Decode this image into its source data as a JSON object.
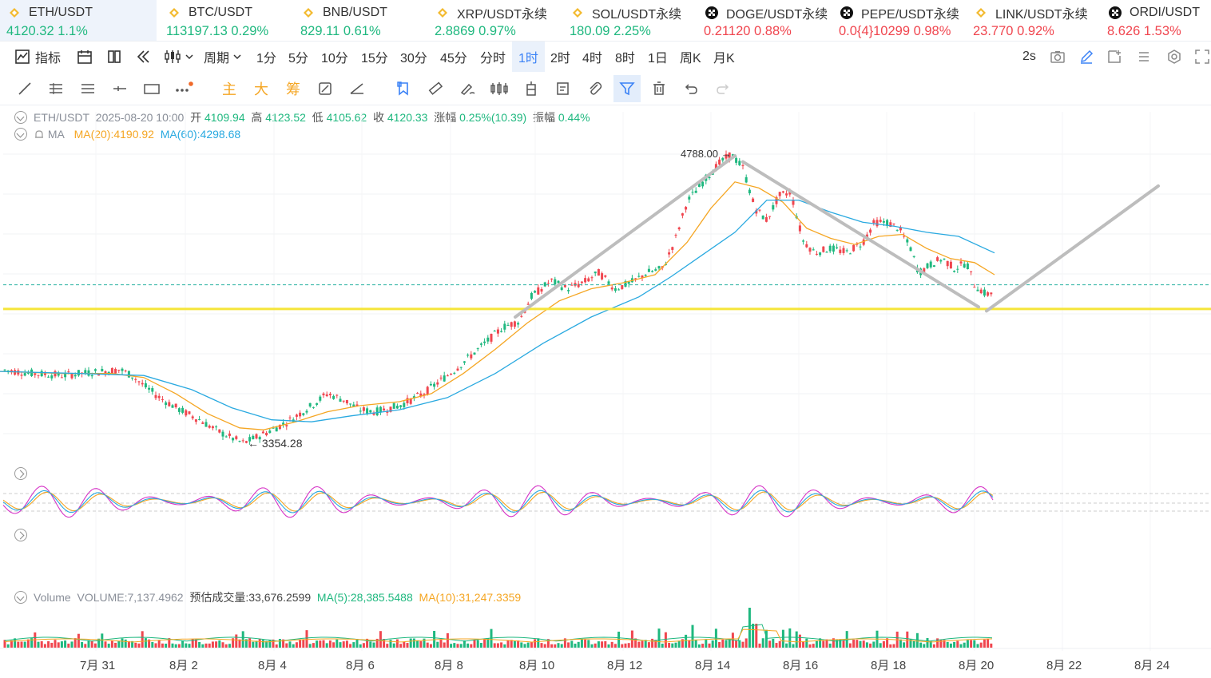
{
  "tickers": [
    {
      "symbol": "ETH/USDT",
      "price": "4120.32",
      "change": "1.1%",
      "dir": "up",
      "icon": "bnb-diamond-icon",
      "active": true
    },
    {
      "symbol": "BTC/USDT",
      "price": "113197.13",
      "change": "0.29%",
      "dir": "up",
      "icon": "bnb-diamond-icon"
    },
    {
      "symbol": "BNB/USDT",
      "price": "829.11",
      "change": "0.61%",
      "dir": "up",
      "icon": "bnb-diamond-icon"
    },
    {
      "symbol": "XRP/USDT永续",
      "price": "2.8869",
      "change": "0.97%",
      "dir": "up",
      "icon": "bnb-diamond-icon"
    },
    {
      "symbol": "SOL/USDT永续",
      "price": "180.09",
      "change": "2.25%",
      "dir": "up",
      "icon": "bnb-diamond-icon"
    },
    {
      "symbol": "DOGE/USDT永续",
      "price": "0.21120",
      "change": "0.88%",
      "dir": "down",
      "icon": "okx-cross-icon"
    },
    {
      "symbol": "PEPE/USDT永续",
      "price": "0.0{4}10299",
      "change": "0.98%",
      "dir": "down",
      "icon": "okx-cross-icon"
    },
    {
      "symbol": "LINK/USDT永续",
      "price": "23.770",
      "change": "0.92%",
      "dir": "down",
      "icon": "bnb-diamond-icon"
    },
    {
      "symbol": "ORDI/USDT",
      "price": "8.626",
      "change": "1.53%",
      "dir": "down",
      "icon": "okx-cross-icon"
    }
  ],
  "toolbar": {
    "indicators": "指标",
    "period": "周期",
    "intervals": [
      "1分",
      "5分",
      "10分",
      "15分",
      "30分",
      "45分",
      "分时",
      "1时",
      "2时",
      "4时",
      "8时",
      "1日",
      "周K",
      "月K"
    ],
    "selected_interval": "1时",
    "refresh": "2s"
  },
  "drawing_tools": {
    "labels": [
      "主",
      "大",
      "筹"
    ]
  },
  "legend": {
    "symbol": "ETH/USDT",
    "datetime": "2025-08-20 10:00",
    "open_label": "开",
    "open": "4109.94",
    "high_label": "高",
    "high": "4123.52",
    "low_label": "低",
    "low": "4105.62",
    "close_label": "收",
    "close": "4120.33",
    "change_label": "涨幅",
    "change": "0.25%(10.39)",
    "amp_label": "振幅",
    "amp": "0.44%",
    "ma_title": "MA",
    "ma20": "MA(20):4190.92",
    "ma60": "MA(60):4298.68",
    "ma20_color": "#f5a623",
    "ma60_color": "#29a9e0"
  },
  "volume_legend": {
    "title": "Volume",
    "volume": "VOLUME:7,137.4962",
    "est": "预估成交量:33,676.2599",
    "ma5": "MA(5):28,385.5488",
    "ma10": "MA(10):31,247.3359"
  },
  "chart_data": {
    "type": "candlestick",
    "interval": "1h",
    "x_axis_labels": [
      "7月 31",
      "8月 2",
      "8月 4",
      "8月 6",
      "8月 8",
      "8月 10",
      "8月 12",
      "8月 14",
      "8月 16",
      "8月 18",
      "8月 20",
      "8月 22",
      "8月 24"
    ],
    "y_range": [
      3250,
      4850
    ],
    "max_marker": "4788.00",
    "min_marker": "3354.28",
    "price_path": [
      [
        0,
        3720
      ],
      [
        40,
        3700
      ],
      [
        80,
        3690
      ],
      [
        100,
        3700
      ],
      [
        130,
        3710
      ],
      [
        150,
        3720
      ],
      [
        165,
        3690
      ],
      [
        180,
        3640
      ],
      [
        200,
        3580
      ],
      [
        225,
        3520
      ],
      [
        250,
        3470
      ],
      [
        270,
        3420
      ],
      [
        290,
        3380
      ],
      [
        305,
        3354
      ],
      [
        330,
        3400
      ],
      [
        360,
        3460
      ],
      [
        390,
        3540
      ],
      [
        410,
        3600
      ],
      [
        430,
        3570
      ],
      [
        450,
        3520
      ],
      [
        470,
        3510
      ],
      [
        500,
        3540
      ],
      [
        530,
        3600
      ],
      [
        550,
        3660
      ],
      [
        570,
        3720
      ],
      [
        590,
        3790
      ],
      [
        610,
        3860
      ],
      [
        630,
        3930
      ],
      [
        650,
        3960
      ],
      [
        665,
        4080
      ],
      [
        690,
        4160
      ],
      [
        710,
        4120
      ],
      [
        730,
        4150
      ],
      [
        750,
        4200
      ],
      [
        770,
        4120
      ],
      [
        790,
        4150
      ],
      [
        810,
        4200
      ],
      [
        830,
        4220
      ],
      [
        845,
        4360
      ],
      [
        860,
        4550
      ],
      [
        880,
        4650
      ],
      [
        900,
        4740
      ],
      [
        915,
        4788
      ],
      [
        930,
        4720
      ],
      [
        945,
        4520
      ],
      [
        960,
        4460
      ],
      [
        975,
        4580
      ],
      [
        990,
        4600
      ],
      [
        1005,
        4360
      ],
      [
        1020,
        4300
      ],
      [
        1040,
        4320
      ],
      [
        1060,
        4300
      ],
      [
        1080,
        4350
      ],
      [
        1095,
        4450
      ],
      [
        1110,
        4450
      ],
      [
        1125,
        4420
      ],
      [
        1140,
        4320
      ],
      [
        1150,
        4200
      ],
      [
        1165,
        4240
      ],
      [
        1180,
        4270
      ],
      [
        1195,
        4220
      ],
      [
        1210,
        4250
      ],
      [
        1220,
        4140
      ],
      [
        1235,
        4090
      ],
      [
        1245,
        4110
      ]
    ],
    "ma20_path": [
      [
        0,
        3710
      ],
      [
        80,
        3700
      ],
      [
        140,
        3700
      ],
      [
        180,
        3680
      ],
      [
        220,
        3600
      ],
      [
        260,
        3500
      ],
      [
        300,
        3430
      ],
      [
        330,
        3420
      ],
      [
        370,
        3460
      ],
      [
        410,
        3510
      ],
      [
        450,
        3540
      ],
      [
        500,
        3560
      ],
      [
        540,
        3600
      ],
      [
        580,
        3700
      ],
      [
        620,
        3820
      ],
      [
        660,
        3950
      ],
      [
        700,
        4060
      ],
      [
        740,
        4120
      ],
      [
        780,
        4150
      ],
      [
        820,
        4190
      ],
      [
        860,
        4350
      ],
      [
        890,
        4520
      ],
      [
        920,
        4650
      ],
      [
        950,
        4620
      ],
      [
        980,
        4550
      ],
      [
        1010,
        4420
      ],
      [
        1040,
        4370
      ],
      [
        1070,
        4340
      ],
      [
        1100,
        4380
      ],
      [
        1130,
        4390
      ],
      [
        1160,
        4320
      ],
      [
        1190,
        4270
      ],
      [
        1220,
        4250
      ],
      [
        1245,
        4190
      ]
    ],
    "ma60_path": [
      [
        0,
        3710
      ],
      [
        100,
        3700
      ],
      [
        180,
        3690
      ],
      [
        240,
        3620
      ],
      [
        290,
        3530
      ],
      [
        340,
        3470
      ],
      [
        390,
        3460
      ],
      [
        440,
        3490
      ],
      [
        500,
        3520
      ],
      [
        560,
        3580
      ],
      [
        620,
        3700
      ],
      [
        680,
        3850
      ],
      [
        740,
        3980
      ],
      [
        800,
        4080
      ],
      [
        840,
        4180
      ],
      [
        880,
        4290
      ],
      [
        920,
        4400
      ],
      [
        960,
        4560
      ],
      [
        1000,
        4560
      ],
      [
        1040,
        4500
      ],
      [
        1080,
        4450
      ],
      [
        1120,
        4430
      ],
      [
        1160,
        4400
      ],
      [
        1200,
        4380
      ],
      [
        1245,
        4298
      ]
    ],
    "support_level": 4020,
    "trendlines": [
      {
        "name": "rising-channel",
        "from": [
          645,
          3980
        ],
        "to": [
          920,
          4780
        ]
      },
      {
        "name": "falling-channel",
        "from": [
          930,
          4750
        ],
        "to": [
          1225,
          4030
        ]
      },
      {
        "name": "projected-rally",
        "from": [
          1235,
          4010
        ],
        "to": [
          1450,
          4630
        ]
      }
    ]
  }
}
